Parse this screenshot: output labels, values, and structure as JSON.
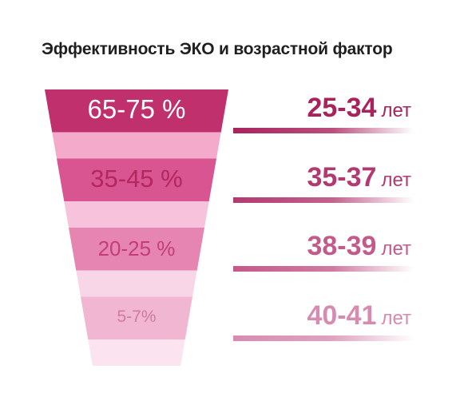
{
  "chart_data": {
    "type": "funnel",
    "title": "Эффективность ЭКО и возрастной фактор",
    "categories": [
      "25-34",
      "35-37",
      "38-39",
      "40-41"
    ],
    "efficiency_labels": [
      "65-75 %",
      "35-45 %",
      "20-25 %",
      "5-7%"
    ],
    "efficiency_range_pct": [
      [
        65,
        75
      ],
      [
        35,
        45
      ],
      [
        20,
        25
      ],
      [
        5,
        7
      ]
    ],
    "age_unit": "лет",
    "colors": {
      "bands": [
        "#c0306c",
        "#d95592",
        "#e685b2",
        "#f0b6d2"
      ],
      "separators": [
        "#f4aacb",
        "#f7c3dc",
        "#f9d6e7",
        "#fbe4ef"
      ],
      "age_text": [
        "#a8235c",
        "#b33a70",
        "#c45a8a",
        "#d88bb0"
      ],
      "band_text": [
        "#ffffff",
        "#b3275f",
        "#c13e78",
        "#d07aa3"
      ]
    }
  }
}
